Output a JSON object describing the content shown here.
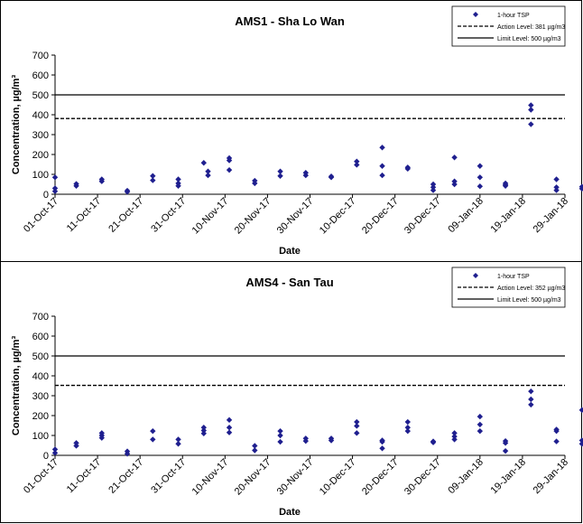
{
  "chart_data": [
    {
      "type": "scatter",
      "title": "AMS1 - Sha Lo Wan",
      "xlabel": "Date",
      "ylabel": "Concentration, µg/m³",
      "ylim": [
        0,
        700
      ],
      "yticks": [
        "0",
        "100",
        "200",
        "300",
        "400",
        "500",
        "600",
        "700"
      ],
      "xlim": [
        "2017-10-01",
        "2018-01-29"
      ],
      "xticks": [
        "01-Oct-17",
        "11-Oct-17",
        "21-Oct-17",
        "31-Oct-17",
        "10-Nov-17",
        "20-Nov-17",
        "30-Nov-17",
        "10-Dec-17",
        "20-Dec-17",
        "30-Dec-17",
        "09-Jan-18",
        "19-Jan-18",
        "29-Jan-18"
      ],
      "legend_position": "top-right",
      "series": [
        {
          "name": "1-hour TSP",
          "marker": "diamond",
          "color": "#1f1f8f",
          "points": [
            [
              "2017-10-01",
              85
            ],
            [
              "2017-10-01",
              30
            ],
            [
              "2017-10-01",
              15
            ],
            [
              "2017-10-06",
              52
            ],
            [
              "2017-10-06",
              42
            ],
            [
              "2017-10-12",
              75
            ],
            [
              "2017-10-12",
              65
            ],
            [
              "2017-10-18",
              18
            ],
            [
              "2017-10-18",
              12
            ],
            [
              "2017-10-24",
              92
            ],
            [
              "2017-10-24",
              70
            ],
            [
              "2017-10-30",
              75
            ],
            [
              "2017-10-30",
              55
            ],
            [
              "2017-10-30",
              42
            ],
            [
              "2017-11-05",
              158
            ],
            [
              "2017-11-06",
              115
            ],
            [
              "2017-11-06",
              95
            ],
            [
              "2017-11-11",
              182
            ],
            [
              "2017-11-11",
              170
            ],
            [
              "2017-11-11",
              122
            ],
            [
              "2017-11-17",
              68
            ],
            [
              "2017-11-17",
              55
            ],
            [
              "2017-11-23",
              115
            ],
            [
              "2017-11-23",
              92
            ],
            [
              "2017-11-29",
              108
            ],
            [
              "2017-11-29",
              95
            ],
            [
              "2017-12-05",
              90
            ],
            [
              "2017-12-05",
              85
            ],
            [
              "2017-12-11",
              165
            ],
            [
              "2017-12-11",
              148
            ],
            [
              "2017-12-17",
              235
            ],
            [
              "2017-12-17",
              142
            ],
            [
              "2017-12-17",
              95
            ],
            [
              "2017-12-23",
              135
            ],
            [
              "2017-12-23",
              128
            ],
            [
              "2017-12-29",
              50
            ],
            [
              "2017-12-29",
              35
            ],
            [
              "2017-12-29",
              20
            ],
            [
              "2018-01-03",
              185
            ],
            [
              "2018-01-03",
              65
            ],
            [
              "2018-01-03",
              50
            ],
            [
              "2018-01-09",
              142
            ],
            [
              "2018-01-09",
              85
            ],
            [
              "2018-01-09",
              40
            ],
            [
              "2018-01-15",
              55
            ],
            [
              "2018-01-15",
              48
            ],
            [
              "2018-01-15",
              42
            ],
            [
              "2018-01-21",
              448
            ],
            [
              "2018-01-21",
              425
            ],
            [
              "2018-01-21",
              352
            ],
            [
              "2018-01-27",
              75
            ],
            [
              "2018-01-27",
              35
            ],
            [
              "2018-01-27",
              20
            ],
            [
              "2018-02-02",
              38
            ],
            [
              "2018-02-02",
              28
            ]
          ]
        },
        {
          "name": "Action Level: 381 µg/m3",
          "style": "dashed",
          "value": 381
        },
        {
          "name": "Limit Level: 500 µg/m3",
          "style": "solid",
          "value": 500
        }
      ]
    },
    {
      "type": "scatter",
      "title": "AMS4 - San Tau",
      "xlabel": "Date",
      "ylabel": "Concentration, µg/m³",
      "ylim": [
        0,
        700
      ],
      "yticks": [
        "0",
        "100",
        "200",
        "300",
        "400",
        "500",
        "600",
        "700"
      ],
      "xlim": [
        "2017-10-01",
        "2018-01-29"
      ],
      "xticks": [
        "01-Oct-17",
        "11-Oct-17",
        "21-Oct-17",
        "31-Oct-17",
        "10-Nov-17",
        "20-Nov-17",
        "30-Nov-17",
        "10-Dec-17",
        "20-Dec-17",
        "30-Dec-17",
        "09-Jan-18",
        "19-Jan-18",
        "29-Jan-18"
      ],
      "legend_position": "top-right",
      "series": [
        {
          "name": "1-hour TSP",
          "marker": "diamond",
          "color": "#1f1f8f",
          "points": [
            [
              "2017-10-01",
              30
            ],
            [
              "2017-10-01",
              12
            ],
            [
              "2017-10-06",
              62
            ],
            [
              "2017-10-06",
              48
            ],
            [
              "2017-10-12",
              112
            ],
            [
              "2017-10-12",
              100
            ],
            [
              "2017-10-12",
              88
            ],
            [
              "2017-10-18",
              20
            ],
            [
              "2017-10-18",
              8
            ],
            [
              "2017-10-24",
              122
            ],
            [
              "2017-10-24",
              80
            ],
            [
              "2017-10-30",
              80
            ],
            [
              "2017-10-30",
              58
            ],
            [
              "2017-11-05",
              140
            ],
            [
              "2017-11-05",
              125
            ],
            [
              "2017-11-05",
              110
            ],
            [
              "2017-11-11",
              178
            ],
            [
              "2017-11-11",
              140
            ],
            [
              "2017-11-11",
              115
            ],
            [
              "2017-11-17",
              48
            ],
            [
              "2017-11-17",
              25
            ],
            [
              "2017-11-23",
              122
            ],
            [
              "2017-11-23",
              100
            ],
            [
              "2017-11-23",
              68
            ],
            [
              "2017-11-29",
              85
            ],
            [
              "2017-11-29",
              72
            ],
            [
              "2017-12-05",
              85
            ],
            [
              "2017-12-05",
              75
            ],
            [
              "2017-12-11",
              168
            ],
            [
              "2017-12-11",
              148
            ],
            [
              "2017-12-11",
              112
            ],
            [
              "2017-12-17",
              75
            ],
            [
              "2017-12-17",
              68
            ],
            [
              "2017-12-17",
              35
            ],
            [
              "2017-12-23",
              168
            ],
            [
              "2017-12-23",
              140
            ],
            [
              "2017-12-23",
              122
            ],
            [
              "2017-12-29",
              70
            ],
            [
              "2017-12-29",
              65
            ],
            [
              "2018-01-03",
              112
            ],
            [
              "2018-01-03",
              95
            ],
            [
              "2018-01-03",
              80
            ],
            [
              "2018-01-09",
              195
            ],
            [
              "2018-01-09",
              155
            ],
            [
              "2018-01-09",
              122
            ],
            [
              "2018-01-15",
              72
            ],
            [
              "2018-01-15",
              62
            ],
            [
              "2018-01-15",
              22
            ],
            [
              "2018-01-21",
              322
            ],
            [
              "2018-01-21",
              282
            ],
            [
              "2018-01-21",
              255
            ],
            [
              "2018-01-27",
              130
            ],
            [
              "2018-01-27",
              122
            ],
            [
              "2018-01-27",
              70
            ],
            [
              "2018-02-02",
              228
            ],
            [
              "2018-02-02",
              75
            ],
            [
              "2018-02-02",
              58
            ]
          ]
        },
        {
          "name": "Action Level: 352 µg/m3",
          "style": "dashed",
          "value": 352
        },
        {
          "name": "Limit Level: 500 µg/m3",
          "style": "solid",
          "value": 500
        }
      ]
    }
  ]
}
